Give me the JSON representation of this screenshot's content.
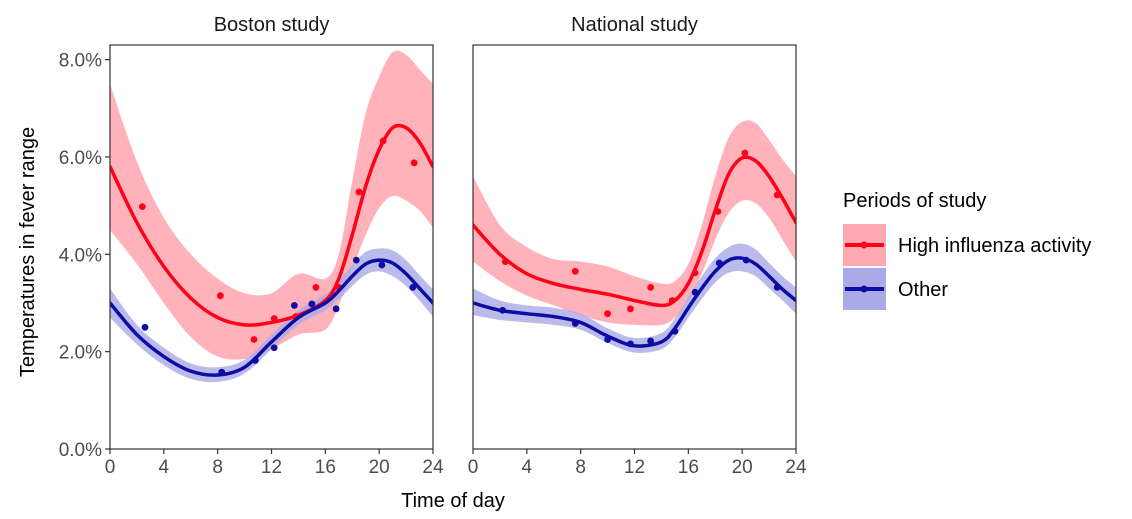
{
  "chart_data": {
    "type": "line",
    "ylabel": "Temperatures in fever range",
    "xlabel": "Time of day",
    "xlim": [
      0,
      24
    ],
    "ylim": [
      0,
      8.3
    ],
    "x_ticks": [
      0,
      4,
      8,
      12,
      16,
      20,
      24
    ],
    "y_ticks": [
      0,
      2,
      4,
      6,
      8
    ],
    "y_tick_labels": [
      "0.0%",
      "2.0%",
      "4.0%",
      "6.0%",
      "8.0%"
    ],
    "legend": {
      "title": "Periods of study",
      "position": "right",
      "entries": [
        "High influenza activity",
        "Other"
      ]
    },
    "series_colors": {
      "high": "#ff0019",
      "high_band": "#ffaab2",
      "other": "#0d0da6",
      "other_band": "#aaaae6"
    },
    "panels": [
      {
        "title": "Boston study",
        "series": [
          {
            "name": "High influenza activity",
            "points": [
              [
                2.4,
                4.98
              ],
              [
                8.2,
                3.15
              ],
              [
                10.7,
                2.25
              ],
              [
                12.2,
                2.68
              ],
              [
                13.8,
                2.72
              ],
              [
                15.3,
                3.32
              ],
              [
                17.0,
                3.32
              ],
              [
                18.5,
                5.28
              ],
              [
                20.3,
                6.33
              ],
              [
                22.6,
                5.88
              ]
            ],
            "smooth_x": [
              0,
              2,
              4,
              6,
              8,
              10,
              12,
              14,
              16,
              17,
              18,
              19,
              20,
              21,
              22,
              23,
              24
            ],
            "smooth_y": [
              5.8,
              4.65,
              3.75,
              3.1,
              2.7,
              2.55,
              2.6,
              2.75,
              3.05,
              3.5,
              4.4,
              5.4,
              6.15,
              6.6,
              6.6,
              6.3,
              5.8
            ],
            "band_lower": [
              4.5,
              3.8,
              3.0,
              2.3,
              1.9,
              1.85,
              2.05,
              2.35,
              2.45,
              2.95,
              3.7,
              4.4,
              4.95,
              5.2,
              5.1,
              4.9,
              4.55
            ],
            "band_upper": [
              7.5,
              5.9,
              4.75,
              4.0,
              3.5,
              3.2,
              3.2,
              3.6,
              3.5,
              4.0,
              5.5,
              6.9,
              7.65,
              8.15,
              8.1,
              7.8,
              7.5
            ]
          },
          {
            "name": "Other",
            "points": [
              [
                2.6,
                2.5
              ],
              [
                8.3,
                1.58
              ],
              [
                10.8,
                1.82
              ],
              [
                12.2,
                2.08
              ],
              [
                13.7,
                2.95
              ],
              [
                15.0,
                2.98
              ],
              [
                16.8,
                2.88
              ],
              [
                18.3,
                3.88
              ],
              [
                20.2,
                3.78
              ],
              [
                22.5,
                3.32
              ]
            ],
            "smooth_x": [
              0,
              2,
              4,
              6,
              8,
              10,
              12,
              14,
              16,
              17,
              18,
              19,
              20,
              21,
              22,
              23,
              24
            ],
            "smooth_y": [
              3.0,
              2.35,
              1.9,
              1.6,
              1.52,
              1.68,
              2.2,
              2.7,
              3.0,
              3.25,
              3.55,
              3.8,
              3.88,
              3.82,
              3.6,
              3.3,
              3.0
            ],
            "band_lower": [
              2.7,
              2.15,
              1.72,
              1.44,
              1.38,
              1.55,
              2.05,
              2.55,
              2.85,
              3.08,
              3.35,
              3.58,
              3.65,
              3.55,
              3.35,
              3.05,
              2.72
            ],
            "band_upper": [
              3.3,
              2.55,
              2.08,
              1.76,
              1.68,
              1.83,
              2.35,
              2.85,
              3.18,
              3.45,
              3.78,
              4.05,
              4.12,
              4.08,
              3.88,
              3.57,
              3.28
            ]
          }
        ]
      },
      {
        "title": "National study",
        "series": [
          {
            "name": "High influenza activity",
            "points": [
              [
                2.4,
                3.85
              ],
              [
                7.6,
                3.65
              ],
              [
                10.0,
                2.78
              ],
              [
                11.7,
                2.88
              ],
              [
                13.2,
                3.32
              ],
              [
                14.8,
                3.05
              ],
              [
                16.5,
                3.62
              ],
              [
                18.2,
                4.88
              ],
              [
                20.2,
                6.08
              ],
              [
                22.6,
                5.22
              ]
            ],
            "smooth_x": [
              0,
              2,
              4,
              6,
              8,
              10,
              12,
              14,
              15,
              16,
              17,
              18,
              19,
              20,
              21,
              22,
              23,
              24
            ],
            "smooth_y": [
              4.6,
              4.0,
              3.6,
              3.4,
              3.28,
              3.18,
              3.05,
              2.95,
              3.05,
              3.4,
              4.05,
              4.9,
              5.65,
              5.98,
              5.92,
              5.6,
              5.15,
              4.65
            ],
            "band_lower": [
              3.85,
              3.45,
              3.15,
              2.95,
              2.75,
              2.6,
              2.55,
              2.55,
              2.7,
              3.05,
              3.6,
              4.3,
              4.85,
              5.1,
              5.05,
              4.75,
              4.3,
              3.85
            ],
            "band_upper": [
              5.6,
              4.6,
              4.15,
              3.9,
              3.85,
              3.75,
              3.55,
              3.4,
              3.45,
              3.8,
              4.6,
              5.6,
              6.4,
              6.72,
              6.7,
              6.35,
              5.95,
              5.6
            ]
          },
          {
            "name": "Other",
            "points": [
              [
                2.2,
                2.85
              ],
              [
                7.6,
                2.58
              ],
              [
                10.0,
                2.25
              ],
              [
                11.7,
                2.16
              ],
              [
                13.2,
                2.22
              ],
              [
                15.0,
                2.42
              ],
              [
                16.5,
                3.22
              ],
              [
                18.3,
                3.82
              ],
              [
                20.3,
                3.88
              ],
              [
                22.6,
                3.32
              ]
            ],
            "smooth_x": [
              0,
              2,
              4,
              6,
              8,
              10,
              12,
              14,
              15,
              16,
              17,
              18,
              19,
              20,
              21,
              22,
              23,
              24
            ],
            "smooth_y": [
              3.0,
              2.85,
              2.78,
              2.72,
              2.6,
              2.32,
              2.12,
              2.2,
              2.48,
              2.9,
              3.3,
              3.65,
              3.88,
              3.92,
              3.8,
              3.55,
              3.28,
              3.05
            ],
            "band_lower": [
              2.75,
              2.65,
              2.6,
              2.55,
              2.45,
              2.18,
              1.98,
              2.05,
              2.3,
              2.7,
              3.08,
              3.42,
              3.62,
              3.65,
              3.55,
              3.3,
              3.05,
              2.78
            ],
            "band_upper": [
              3.3,
              3.05,
              2.95,
              2.9,
              2.78,
              2.48,
              2.28,
              2.38,
              2.68,
              3.12,
              3.55,
              3.92,
              4.15,
              4.22,
              4.1,
              3.82,
              3.55,
              3.32
            ]
          }
        ]
      }
    ]
  }
}
